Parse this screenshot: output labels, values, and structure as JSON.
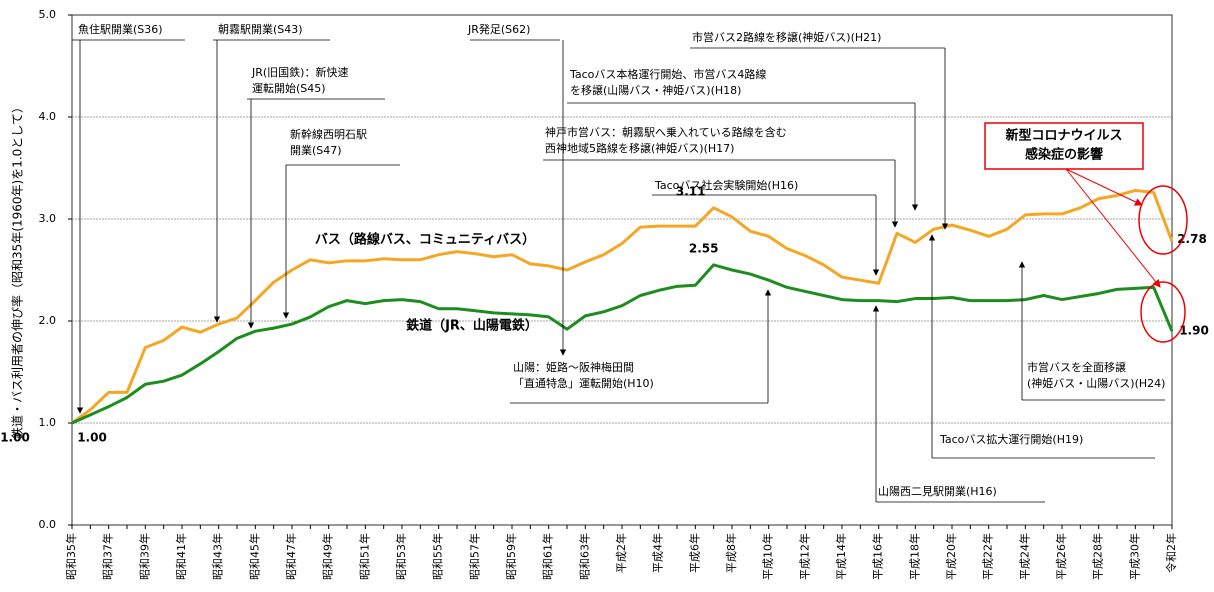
{
  "chart_data": {
    "type": "line",
    "y_label": "鉄道・バス利用者の伸び率（昭和35年(1960年)を1.0として）",
    "categories": [
      "昭和35年",
      null,
      "昭和37年",
      null,
      "昭和39年",
      null,
      "昭和41年",
      null,
      "昭和43年",
      null,
      "昭和45年",
      null,
      "昭和47年",
      null,
      "昭和49年",
      null,
      "昭和51年",
      null,
      "昭和53年",
      null,
      "昭和55年",
      null,
      "昭和57年",
      null,
      "昭和59年",
      null,
      "昭和61年",
      null,
      "昭和63年",
      null,
      "平成2年",
      null,
      "平成4年",
      null,
      "平成6年",
      null,
      "平成8年",
      null,
      "平成10年",
      null,
      "平成12年",
      null,
      "平成14年",
      null,
      "平成16年",
      null,
      "平成18年",
      null,
      "平成20年",
      null,
      "平成22年",
      null,
      "平成24年",
      null,
      "平成26年",
      null,
      "平成28年",
      null,
      "平成30年",
      null,
      "令和2年"
    ],
    "series": [
      {
        "name": "バス（路線バス、コミュニティバス）",
        "color": "#f5a623",
        "values": [
          1.0,
          1.13,
          1.3,
          1.3,
          1.74,
          1.81,
          1.94,
          1.89,
          1.97,
          2.03,
          2.2,
          2.38,
          2.5,
          2.6,
          2.57,
          2.59,
          2.59,
          2.61,
          2.6,
          2.6,
          2.65,
          2.68,
          2.66,
          2.63,
          2.65,
          2.56,
          2.54,
          2.5,
          2.58,
          2.65,
          2.76,
          2.92,
          2.93,
          2.93,
          2.93,
          3.11,
          3.02,
          2.88,
          2.83,
          2.71,
          2.64,
          2.55,
          2.43,
          2.4,
          2.37,
          2.86,
          2.77,
          2.9,
          2.94,
          2.89,
          2.83,
          2.9,
          3.04,
          3.05,
          3.05,
          3.11,
          3.2,
          3.23,
          3.28,
          3.26,
          2.78
        ],
        "value_labels": [
          "1.00",
          null,
          null,
          null,
          null,
          null,
          null,
          null,
          null,
          null,
          null,
          null,
          null,
          null,
          null,
          null,
          null,
          null,
          null,
          null,
          null,
          null,
          null,
          null,
          null,
          null,
          null,
          null,
          null,
          null,
          null,
          null,
          null,
          null,
          null,
          "3.11",
          null,
          null,
          null,
          null,
          null,
          null,
          null,
          null,
          null,
          null,
          null,
          null,
          null,
          null,
          null,
          null,
          null,
          null,
          null,
          null,
          null,
          null,
          null,
          null,
          "2.78"
        ]
      },
      {
        "name": "鉄道（JR、山陽電鉄）",
        "color": "#1e8c1e",
        "values": [
          1.0,
          1.08,
          1.16,
          1.25,
          1.38,
          1.41,
          1.47,
          1.58,
          1.7,
          1.83,
          1.9,
          1.93,
          1.97,
          2.04,
          2.14,
          2.2,
          2.17,
          2.2,
          2.21,
          2.19,
          2.12,
          2.12,
          2.1,
          2.08,
          2.07,
          2.06,
          2.04,
          1.92,
          2.05,
          2.09,
          2.15,
          2.25,
          2.3,
          2.34,
          2.35,
          2.55,
          2.5,
          2.46,
          2.4,
          2.33,
          2.29,
          2.25,
          2.21,
          2.2,
          2.2,
          2.19,
          2.22,
          2.22,
          2.23,
          2.2,
          2.2,
          2.2,
          2.21,
          2.25,
          2.21,
          2.24,
          2.27,
          2.31,
          2.32,
          2.33,
          1.9
        ],
        "value_labels": [
          "1.00",
          null,
          null,
          null,
          null,
          null,
          null,
          null,
          null,
          null,
          null,
          null,
          null,
          null,
          null,
          null,
          null,
          null,
          null,
          null,
          null,
          null,
          null,
          null,
          null,
          null,
          null,
          null,
          null,
          null,
          null,
          null,
          null,
          null,
          null,
          "2.55",
          null,
          null,
          null,
          null,
          null,
          null,
          null,
          null,
          null,
          null,
          null,
          null,
          null,
          null,
          null,
          null,
          null,
          null,
          null,
          null,
          null,
          null,
          null,
          null,
          "1.90"
        ]
      }
    ],
    "ylim": [
      0,
      5
    ],
    "yticks": [
      {
        "value": 0,
        "label": "0.0"
      },
      {
        "value": 1,
        "label": "1.0"
      },
      {
        "value": 2,
        "label": "2.0"
      },
      {
        "value": 3,
        "label": "3.0"
      },
      {
        "value": 4,
        "label": "4.0"
      },
      {
        "value": 5,
        "label": "5.0"
      }
    ],
    "grid": true,
    "annotations": [
      [
        "魚住駅開業(S36)"
      ],
      [
        "朝霧駅開業(S43)"
      ],
      [
        "JR(旧国鉄)：新快速",
        "運転開始(S45)"
      ],
      [
        "新幹線西明石駅",
        "開業(S47)"
      ],
      [
        "JR発足(S62)"
      ],
      [
        "市営バス2路線を移譲(神姫バス)(H21)"
      ],
      [
        "Tacoバス本格運行開始、市営バス4路線",
        "を移譲(山陽バス・神姫バス)(H18)"
      ],
      [
        "神戸市営バス：朝霧駅へ乗入れている路線を含む",
        "西神地域5路線を移譲(神姫バス)(H17)"
      ],
      [
        "Tacoバス社会実験開始(H16)"
      ],
      [
        "山陽：姫路～阪神梅田間",
        "「直通特急」運転開始(H10)"
      ],
      [
        "市営バスを全面移譲",
        "(神姫バス・山陽バス)(H24)"
      ],
      [
        "Tacoバス拡大運行開始(H19)"
      ],
      [
        "山陽西二見駅開業(H16)"
      ]
    ],
    "callout": [
      "新型コロナウイルス",
      "感染症の影響"
    ]
  }
}
